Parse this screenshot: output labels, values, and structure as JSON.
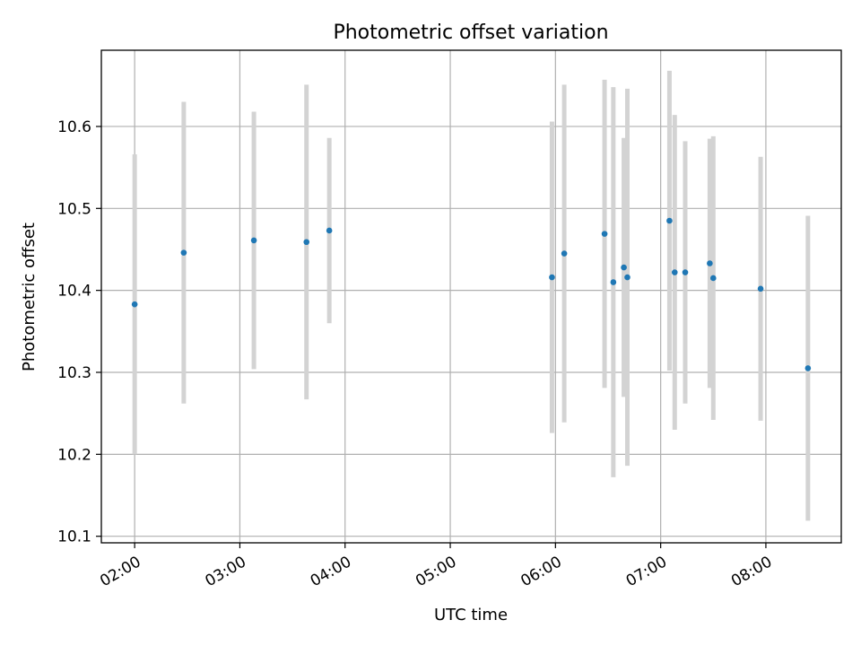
{
  "chart_data": {
    "type": "scatter",
    "title": "Photometric offset variation",
    "xlabel": "UTC time",
    "ylabel": "Photometric offset",
    "x_axis_type": "time",
    "xlim": [
      "01:41",
      "08:43"
    ],
    "ylim": [
      10.092,
      10.693
    ],
    "x_ticks": [
      "02:00",
      "03:00",
      "04:00",
      "05:00",
      "06:00",
      "07:00",
      "08:00"
    ],
    "y_ticks": [
      "10.1",
      "10.2",
      "10.3",
      "10.4",
      "10.5",
      "10.6"
    ],
    "grid": true,
    "marker_color": "#1f77b4",
    "errorbar_color": "#d3d3d3",
    "points": [
      {
        "time": "02:00",
        "y": 10.383,
        "err": 0.183
      },
      {
        "time": "02:28",
        "y": 10.446,
        "err": 0.184
      },
      {
        "time": "03:08",
        "y": 10.461,
        "err": 0.157
      },
      {
        "time": "03:38",
        "y": 10.459,
        "err": 0.192
      },
      {
        "time": "03:51",
        "y": 10.473,
        "err": 0.113
      },
      {
        "time": "05:58",
        "y": 10.416,
        "err": 0.19
      },
      {
        "time": "06:05",
        "y": 10.445,
        "err": 0.206
      },
      {
        "time": "06:28",
        "y": 10.469,
        "err": 0.188
      },
      {
        "time": "06:33",
        "y": 10.41,
        "err": 0.238
      },
      {
        "time": "06:39",
        "y": 10.428,
        "err": 0.158
      },
      {
        "time": "06:41",
        "y": 10.416,
        "err": 0.23
      },
      {
        "time": "07:05",
        "y": 10.485,
        "err": 0.183
      },
      {
        "time": "07:08",
        "y": 10.422,
        "err": 0.192
      },
      {
        "time": "07:14",
        "y": 10.422,
        "err": 0.16
      },
      {
        "time": "07:28",
        "y": 10.433,
        "err": 0.152
      },
      {
        "time": "07:30",
        "y": 10.415,
        "err": 0.173
      },
      {
        "time": "07:57",
        "y": 10.402,
        "err": 0.161
      },
      {
        "time": "08:24",
        "y": 10.305,
        "err": 0.186
      }
    ]
  }
}
